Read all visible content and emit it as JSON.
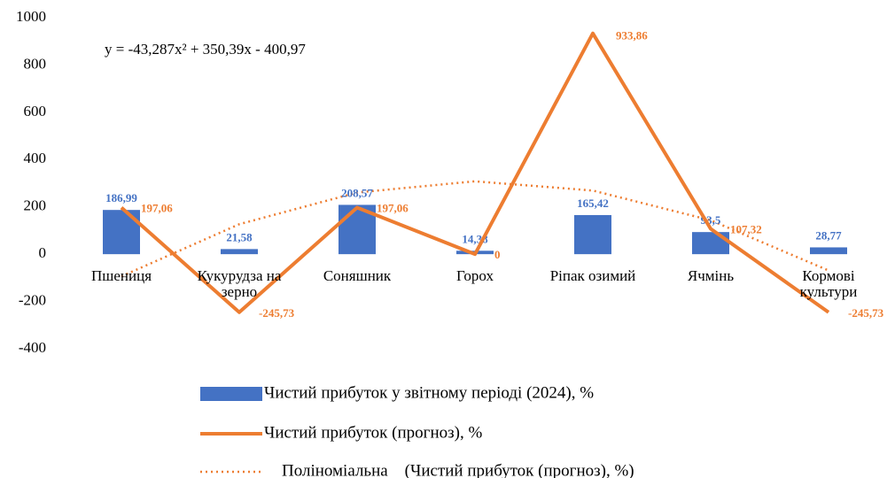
{
  "chart_data": {
    "type": "bar_line",
    "annotation": "y = -43,287x² + 350,39x - 400,97",
    "categories": [
      "Пшениця",
      "Кукурудза на зерно",
      "Соняшник",
      "Горох",
      "Ріпак озимий",
      "Ячмінь",
      "Кормові культури"
    ],
    "series": [
      {
        "name": "Чистий прибуток у звітному періоді (2024), %",
        "type": "bar",
        "color": "#4472c4",
        "values": [
          186.99,
          21.58,
          208.57,
          14.38,
          165.42,
          93.5,
          28.77
        ],
        "value_labels": [
          "186,99",
          "21,58",
          "208,57",
          "14,38",
          "165,42",
          "93,5",
          "28,77"
        ]
      },
      {
        "name": "Чистий прибуток (прогноз), %",
        "type": "line",
        "color": "#ed7d31",
        "values": [
          197.06,
          -245.73,
          197.06,
          0,
          933.86,
          107.32,
          -245.73
        ],
        "value_labels": [
          "197,06",
          "-245,73",
          "197,06",
          "0",
          "933,86",
          "107,32",
          "-245,73"
        ]
      },
      {
        "name": "Поліноміальна    (Чистий прибуток (прогноз), %)",
        "type": "trend",
        "color": "#ed7d31",
        "values": [
          -93.87,
          126.72,
          260.73,
          308.17,
          269.03,
          143.32,
          -68.97
        ]
      }
    ],
    "ylim": [
      -400,
      1000
    ],
    "yticks": [
      -400,
      -200,
      0,
      200,
      400,
      600,
      800,
      1000
    ]
  }
}
